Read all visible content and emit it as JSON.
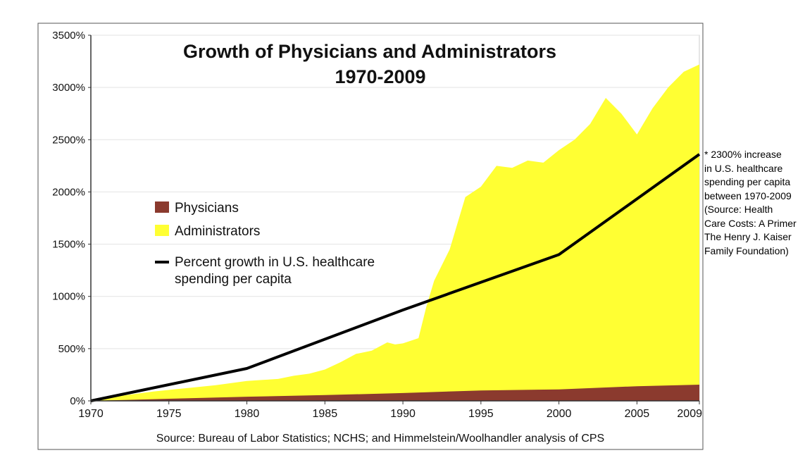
{
  "chart_data": {
    "type": "area",
    "title_line1": "Growth of Physicians and Administrators",
    "title_line2": "1970-2009",
    "xlabel": "",
    "ylabel": "",
    "xlim": [
      1970,
      2009
    ],
    "ylim": [
      0,
      3500
    ],
    "y_ticks": [
      0,
      500,
      1000,
      1500,
      2000,
      2500,
      3000,
      3500
    ],
    "y_tick_labels": [
      "0%",
      "500%",
      "1000%",
      "1500%",
      "2000%",
      "2500%",
      "3000%",
      "3500%"
    ],
    "x_ticks": [
      1970,
      1975,
      1980,
      1985,
      1990,
      1995,
      2000,
      2005,
      2009
    ],
    "x_tick_labels": [
      "1970",
      "1975",
      "1980",
      "1985",
      "1990",
      "1995",
      "2000",
      "2005",
      "2009"
    ],
    "grid": "horizontal",
    "legend_position": "middle-left",
    "source": "Source: Bureau of Labor Statistics; NCHS; and Himmelstein/Woolhandler analysis of CPS",
    "series": [
      {
        "name": "Administrators",
        "legend_label": "Administrators",
        "kind": "area",
        "color": "#ffff33",
        "x": [
          1970,
          1972,
          1974,
          1976,
          1978,
          1980,
          1981,
          1982,
          1983,
          1984,
          1985,
          1986,
          1987,
          1988,
          1989,
          1989.5,
          1990,
          1991,
          1991.5,
          1992,
          1993,
          1994,
          1995,
          1996,
          1997,
          1998,
          1999,
          2000,
          2001,
          2002,
          2003,
          2004,
          2005,
          2006,
          2007,
          2008,
          2009
        ],
        "values": [
          0,
          50,
          90,
          120,
          150,
          190,
          200,
          210,
          240,
          260,
          300,
          370,
          450,
          480,
          560,
          540,
          550,
          600,
          900,
          1150,
          1450,
          1950,
          2050,
          2250,
          2230,
          2300,
          2280,
          2400,
          2500,
          2650,
          2900,
          2750,
          2550,
          2800,
          3000,
          3150,
          3220
        ]
      },
      {
        "name": "Physicians",
        "legend_label": "Physicians",
        "kind": "area",
        "color": "#8b3a2e",
        "x": [
          1970,
          1975,
          1980,
          1985,
          1990,
          1995,
          2000,
          2005,
          2009
        ],
        "values": [
          0,
          20,
          40,
          55,
          75,
          100,
          110,
          140,
          155
        ]
      },
      {
        "name": "Percent growth in U.S. healthcare spending per capita",
        "legend_label_line1": "Percent growth in U.S. healthcare",
        "legend_label_line2": "spending per capita",
        "kind": "line",
        "color": "#000000",
        "x": [
          1970,
          1980,
          1990,
          2000,
          2009
        ],
        "values": [
          0,
          310,
          870,
          1400,
          2360
        ]
      }
    ]
  },
  "side_note": {
    "lines": [
      "* 2300% increase",
      "in U.S. healthcare",
      "spending per capita",
      "between 1970-2009",
      "(Source: Health",
      "Care Costs: A Primer",
      "The Henry J. Kaiser",
      "Family Foundation)"
    ]
  }
}
